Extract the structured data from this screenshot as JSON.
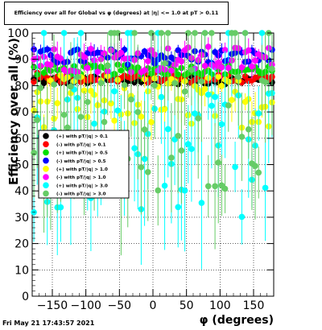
{
  "chart_data": {
    "type": "scatter",
    "title": "Efficiency over all for Global vs φ (degrees) at |η| <= 1.0 at pT > 0.11",
    "xlabel": "φ (degrees)",
    "ylabel": "Efficiency over all (%)",
    "xlim": [
      -180,
      180
    ],
    "ylim": [
      0,
      100
    ],
    "x_ticks": [
      -150,
      -100,
      -50,
      0,
      50,
      100,
      150
    ],
    "y_ticks": [
      0,
      10,
      20,
      30,
      40,
      50,
      60,
      70,
      80,
      90,
      100
    ],
    "grid": true,
    "legend_position": "left-middle",
    "series": [
      {
        "name": "(+) with pT/|q| > 0.1",
        "color": "#000000",
        "center": 82,
        "spread": 1.5,
        "err": 1.5
      },
      {
        "name": "(-) with pT/|q| > 0.1",
        "color": "#ff0000",
        "center": 83,
        "spread": 2,
        "err": 1.5
      },
      {
        "name": "(+) with pT/|q| > 0.5",
        "color": "#00e000",
        "center": 86,
        "spread": 2,
        "err": 2
      },
      {
        "name": "(-) with pT/|q| > 0.5",
        "color": "#0000ff",
        "center": 91,
        "spread": 3,
        "err": 2.5
      },
      {
        "name": "(+) with pT/|q| > 1.0",
        "color": "#ffff00",
        "center": 74,
        "spread": 10,
        "err": 6
      },
      {
        "name": "(-) with pT/|q| > 1.0",
        "color": "#ff00ff",
        "center": 90,
        "spread": 5,
        "err": 4
      },
      {
        "name": "(+) with pT/|q| > 3.0",
        "color": "#00ffff",
        "center": 55,
        "spread": 25,
        "err": 18
      },
      {
        "name": "(-) with pT/|q| > 3.0",
        "color": "#66cc66",
        "center": 65,
        "spread": 25,
        "err": 18
      }
    ]
  },
  "footer": {
    "timestamp": "Fri May 21 17:43:57 2021"
  }
}
